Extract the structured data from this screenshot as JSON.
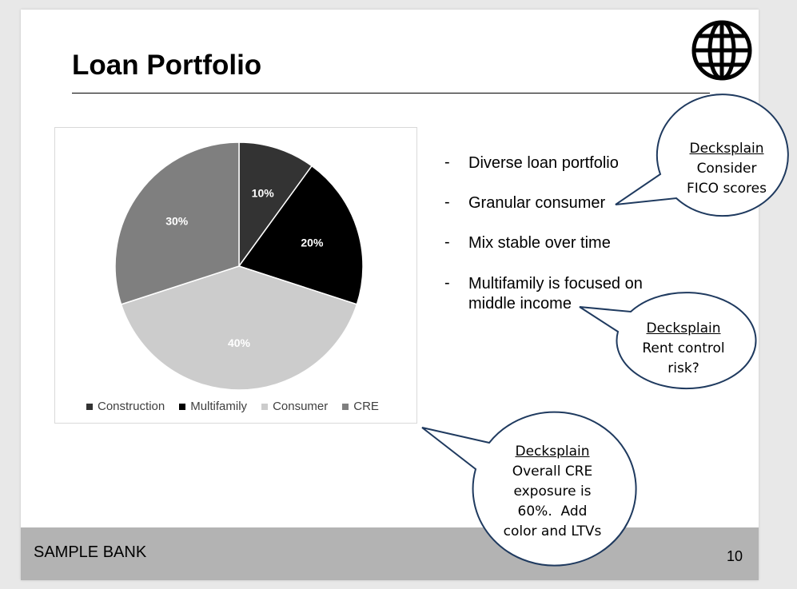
{
  "slide": {
    "title": "Loan Portfolio",
    "footer_left": "SAMPLE BANK",
    "page_number": "10"
  },
  "chart_data": {
    "type": "pie",
    "categories": [
      "Construction",
      "Multifamily",
      "Consumer",
      "CRE"
    ],
    "values": [
      10,
      20,
      40,
      30
    ],
    "labels": [
      "10%",
      "20%",
      "40%",
      "30%"
    ],
    "colors": [
      "#333333",
      "#000000",
      "#cccccc",
      "#7f7f7f"
    ],
    "legend_position": "bottom"
  },
  "bullets": [
    {
      "text": "Diverse loan portfolio"
    },
    {
      "text": "Granular consumer"
    },
    {
      "text": "Mix stable over time"
    },
    {
      "text": "Multifamily is focused on\nmiddle income"
    }
  ],
  "callouts": [
    {
      "heading": "Decksplain",
      "body": "Consider\nFICO scores"
    },
    {
      "heading": "Decksplain",
      "body": "Rent control\nrisk?"
    },
    {
      "heading": "Decksplain",
      "body": "Overall CRE\nexposure is\n60%.  Add\ncolor and LTVs"
    }
  ],
  "icons": {
    "top_right": "globe-icon"
  }
}
